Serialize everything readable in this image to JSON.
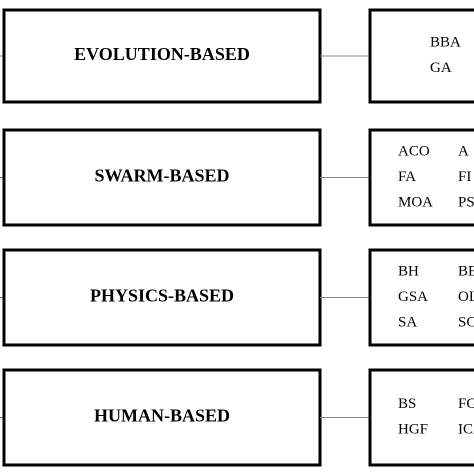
{
  "categories": [
    {
      "label": "EVOLUTION-BASED",
      "items": [
        [
          "BBA"
        ],
        [
          "GA"
        ]
      ]
    },
    {
      "label": "SWARM-BASED",
      "items": [
        [
          "ACO",
          "A"
        ],
        [
          "FA",
          "FI"
        ],
        [
          "MOA",
          "PS"
        ]
      ]
    },
    {
      "label": "PHYSICS-BASED",
      "items": [
        [
          "BH",
          "BE"
        ],
        [
          "GSA",
          "OL"
        ],
        [
          "SA",
          "SC"
        ]
      ]
    },
    {
      "label": "HUMAN-BASED",
      "items": [
        [
          "BS",
          "FG"
        ],
        [
          "HGF",
          "ICA"
        ]
      ]
    }
  ]
}
